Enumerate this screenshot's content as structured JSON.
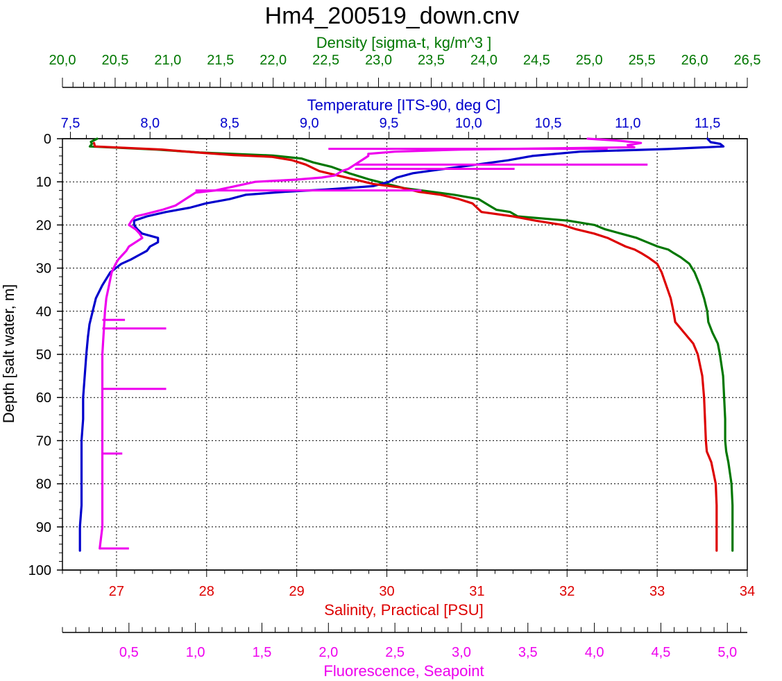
{
  "colors": {
    "density": "#007700",
    "temperature": "#0000cc",
    "salinity": "#dd0000",
    "fluorescence": "#ee00ee",
    "axis": "#000000",
    "grid": "#000000"
  },
  "chart_data": {
    "type": "line",
    "title": "Hm4_200519_down.cnv",
    "grid": true,
    "y_axis": {
      "label": "Depth [salt water, m]",
      "range": [
        0,
        100
      ],
      "reversed": true,
      "ticks": [
        "0",
        "10",
        "20",
        "30",
        "40",
        "50",
        "60",
        "70",
        "80",
        "90",
        "100"
      ],
      "tick_values": [
        0,
        10,
        20,
        30,
        40,
        50,
        60,
        70,
        80,
        90,
        100
      ]
    },
    "axes": {
      "density": {
        "label": "Density [sigma-t, kg/m^3 ]",
        "position": "top",
        "range": [
          20.0,
          26.5
        ],
        "ticks": [
          "20,0",
          "20,5",
          "21,0",
          "21,5",
          "22,0",
          "22,5",
          "23,0",
          "23,5",
          "24,0",
          "24,5",
          "25,0",
          "25,5",
          "26,0",
          "26,5"
        ],
        "tick_values": [
          20.0,
          20.5,
          21.0,
          21.5,
          22.0,
          22.5,
          23.0,
          23.5,
          24.0,
          24.5,
          25.0,
          25.5,
          26.0,
          26.5
        ]
      },
      "temperature": {
        "label": "Temperature [ITS-90, deg C]",
        "position": "top",
        "range": [
          7.45,
          11.75
        ],
        "ticks": [
          "7,5",
          "8,0",
          "8,5",
          "9,0",
          "9,5",
          "10,0",
          "10,5",
          "11,0",
          "11,5"
        ],
        "tick_values": [
          7.5,
          8.0,
          8.5,
          9.0,
          9.5,
          10.0,
          10.5,
          11.0,
          11.5
        ]
      },
      "salinity": {
        "label": "Salinity, Practical [PSU]",
        "position": "bottom",
        "range": [
          26.4,
          34.0
        ],
        "ticks": [
          "27",
          "28",
          "29",
          "30",
          "31",
          "32",
          "33",
          "34"
        ],
        "tick_values": [
          27,
          28,
          29,
          30,
          31,
          32,
          33,
          34
        ]
      },
      "fluorescence": {
        "label": "Fluorescence, Seapoint",
        "position": "bottom",
        "range": [
          0.0,
          5.15
        ],
        "ticks": [
          "0,5",
          "1,0",
          "1,5",
          "2,0",
          "2,5",
          "3,0",
          "3,5",
          "4,0",
          "4,5",
          "5,0"
        ],
        "tick_values": [
          0.5,
          1.0,
          1.5,
          2.0,
          2.5,
          3.0,
          3.5,
          4.0,
          4.5,
          5.0
        ]
      }
    },
    "series": [
      {
        "name": "Density",
        "axis": "density",
        "points": [
          [
            20.33,
            0
          ],
          [
            20.27,
            0.7
          ],
          [
            20.28,
            1.2
          ],
          [
            20.26,
            1.8
          ],
          [
            20.89,
            2.5
          ],
          [
            21.3,
            3.2
          ],
          [
            22.0,
            3.9
          ],
          [
            22.27,
            4.6
          ],
          [
            22.38,
            5.5
          ],
          [
            22.55,
            6.5
          ],
          [
            22.72,
            8.0
          ],
          [
            22.92,
            9.5
          ],
          [
            23.08,
            10.5
          ],
          [
            23.25,
            11.5
          ],
          [
            23.5,
            12.3
          ],
          [
            23.72,
            13.0
          ],
          [
            23.95,
            14.0
          ],
          [
            24.05,
            15.5
          ],
          [
            24.12,
            16.5
          ],
          [
            24.25,
            17.0
          ],
          [
            24.32,
            18.0
          ],
          [
            24.8,
            19.0
          ],
          [
            25.05,
            20.0
          ],
          [
            25.15,
            21.0
          ],
          [
            25.3,
            22.0
          ],
          [
            25.45,
            23.0
          ],
          [
            25.55,
            24.0
          ],
          [
            25.65,
            25.0
          ],
          [
            25.75,
            25.7
          ],
          [
            25.8,
            26.5
          ],
          [
            25.87,
            27.5
          ],
          [
            25.95,
            29.0
          ],
          [
            26.0,
            31.0
          ],
          [
            26.05,
            34.0
          ],
          [
            26.09,
            37.0
          ],
          [
            26.12,
            40.0
          ],
          [
            26.13,
            42.5
          ],
          [
            26.17,
            45.0
          ],
          [
            26.22,
            47.5
          ],
          [
            26.24,
            50.0
          ],
          [
            26.27,
            55.0
          ],
          [
            26.28,
            60.0
          ],
          [
            26.29,
            65.0
          ],
          [
            26.29,
            70.0
          ],
          [
            26.3,
            72.5
          ],
          [
            26.32,
            75.0
          ],
          [
            26.35,
            80.0
          ],
          [
            26.36,
            85.0
          ],
          [
            26.36,
            90.0
          ],
          [
            26.36,
            95.5
          ]
        ]
      },
      {
        "name": "Temperature",
        "axis": "temperature",
        "points": [
          [
            11.5,
            0
          ],
          [
            11.52,
            0.8
          ],
          [
            11.58,
            1.2
          ],
          [
            11.6,
            1.8
          ],
          [
            11.25,
            2.4
          ],
          [
            10.7,
            3.0
          ],
          [
            10.4,
            4.0
          ],
          [
            10.25,
            5.0
          ],
          [
            10.05,
            6.0
          ],
          [
            9.85,
            7.0
          ],
          [
            9.65,
            8.0
          ],
          [
            9.55,
            9.0
          ],
          [
            9.5,
            10.0
          ],
          [
            9.4,
            11.0
          ],
          [
            9.1,
            11.8
          ],
          [
            8.85,
            12.3
          ],
          [
            8.6,
            13.0
          ],
          [
            8.5,
            14.0
          ],
          [
            8.35,
            15.0
          ],
          [
            8.25,
            16.0
          ],
          [
            8.1,
            17.0
          ],
          [
            7.98,
            18.0
          ],
          [
            7.9,
            19.0
          ],
          [
            7.9,
            20.0
          ],
          [
            7.92,
            21.0
          ],
          [
            7.95,
            22.0
          ],
          [
            8.05,
            23.0
          ],
          [
            8.05,
            24.0
          ],
          [
            8.0,
            25.0
          ],
          [
            7.98,
            26.0
          ],
          [
            7.93,
            27.0
          ],
          [
            7.88,
            28.0
          ],
          [
            7.82,
            29.0
          ],
          [
            7.75,
            31.0
          ],
          [
            7.7,
            34.0
          ],
          [
            7.66,
            37.0
          ],
          [
            7.64,
            40.0
          ],
          [
            7.62,
            43.0
          ],
          [
            7.61,
            46.0
          ],
          [
            7.6,
            50.0
          ],
          [
            7.59,
            55.0
          ],
          [
            7.58,
            60.0
          ],
          [
            7.58,
            65.0
          ],
          [
            7.57,
            70.0
          ],
          [
            7.57,
            75.0
          ],
          [
            7.57,
            80.0
          ],
          [
            7.57,
            85.0
          ],
          [
            7.56,
            90.0
          ],
          [
            7.56,
            95.5
          ]
        ]
      },
      {
        "name": "Salinity",
        "axis": "salinity",
        "points": [
          [
            26.75,
            1.0
          ],
          [
            26.76,
            1.8
          ],
          [
            27.5,
            2.5
          ],
          [
            27.9,
            3.2
          ],
          [
            28.3,
            3.8
          ],
          [
            28.72,
            4.2
          ],
          [
            28.95,
            5.0
          ],
          [
            29.1,
            6.0
          ],
          [
            29.25,
            7.5
          ],
          [
            29.45,
            8.5
          ],
          [
            29.65,
            9.5
          ],
          [
            29.85,
            10.5
          ],
          [
            30.15,
            11.3
          ],
          [
            30.35,
            12.3
          ],
          [
            30.6,
            13.0
          ],
          [
            30.8,
            14.0
          ],
          [
            30.95,
            15.0
          ],
          [
            31.0,
            16.0
          ],
          [
            31.05,
            17.0
          ],
          [
            31.4,
            18.0
          ],
          [
            31.65,
            19.0
          ],
          [
            31.95,
            20.0
          ],
          [
            32.1,
            21.0
          ],
          [
            32.3,
            22.0
          ],
          [
            32.45,
            23.0
          ],
          [
            32.55,
            24.0
          ],
          [
            32.65,
            25.0
          ],
          [
            32.75,
            25.7
          ],
          [
            32.82,
            26.5
          ],
          [
            32.9,
            27.5
          ],
          [
            33.0,
            29.0
          ],
          [
            33.05,
            31.0
          ],
          [
            33.1,
            34.0
          ],
          [
            33.15,
            37.0
          ],
          [
            33.18,
            40.0
          ],
          [
            33.2,
            42.5
          ],
          [
            33.3,
            45.0
          ],
          [
            33.4,
            47.5
          ],
          [
            33.45,
            50.0
          ],
          [
            33.5,
            55.0
          ],
          [
            33.52,
            60.0
          ],
          [
            33.53,
            65.0
          ],
          [
            33.54,
            70.0
          ],
          [
            33.55,
            72.5
          ],
          [
            33.6,
            75.0
          ],
          [
            33.65,
            80.0
          ],
          [
            33.66,
            85.0
          ],
          [
            33.66,
            90.0
          ],
          [
            33.66,
            95.5
          ]
        ]
      },
      {
        "name": "Fluorescence",
        "axis": "fluorescence",
        "points": [
          [
            3.95,
            0.0
          ],
          [
            4.2,
            0.5
          ],
          [
            4.35,
            1.0
          ],
          [
            4.25,
            1.5
          ],
          [
            4.3,
            2.0
          ],
          [
            3.0,
            2.5
          ],
          [
            2.5,
            3.0
          ],
          [
            2.3,
            3.5
          ],
          [
            2.3,
            4.0
          ],
          [
            2.25,
            5.0
          ],
          [
            2.2,
            6.0
          ],
          [
            2.15,
            7.0
          ],
          [
            2.1,
            7.5
          ],
          [
            2.05,
            8.5
          ],
          [
            1.95,
            9.0
          ],
          [
            1.75,
            9.5
          ],
          [
            1.45,
            10.0
          ],
          [
            1.3,
            11.0
          ],
          [
            1.15,
            12.0
          ],
          [
            1.0,
            12.5
          ],
          [
            0.95,
            13.5
          ],
          [
            0.9,
            14.5
          ],
          [
            0.85,
            15.5
          ],
          [
            0.75,
            16.5
          ],
          [
            0.62,
            17.5
          ],
          [
            0.55,
            18.0
          ],
          [
            0.52,
            19.0
          ],
          [
            0.5,
            20.0
          ],
          [
            0.55,
            21.0
          ],
          [
            0.58,
            22.0
          ],
          [
            0.6,
            23.0
          ],
          [
            0.55,
            24.0
          ],
          [
            0.5,
            25.0
          ],
          [
            0.48,
            26.0
          ],
          [
            0.45,
            27.0
          ],
          [
            0.42,
            28.0
          ],
          [
            0.4,
            29.0
          ],
          [
            0.37,
            31.0
          ],
          [
            0.35,
            34.0
          ],
          [
            0.33,
            37.0
          ],
          [
            0.32,
            40.0
          ],
          [
            0.31,
            45.0
          ],
          [
            0.3,
            50.0
          ],
          [
            0.3,
            55.0
          ],
          [
            0.3,
            60.0
          ],
          [
            0.3,
            65.0
          ],
          [
            0.3,
            70.0
          ],
          [
            0.3,
            75.0
          ],
          [
            0.3,
            80.0
          ],
          [
            0.3,
            85.0
          ],
          [
            0.3,
            90.0
          ],
          [
            0.28,
            95.0
          ]
        ],
        "spikes": [
          [
            2.35,
            2.0,
            4.1
          ],
          [
            6.0,
            2.2,
            4.4
          ],
          [
            7.0,
            2.2,
            3.4
          ],
          [
            12.0,
            1.0,
            2.7
          ],
          [
            42.0,
            0.3,
            0.47
          ],
          [
            44.0,
            0.3,
            0.78
          ],
          [
            58.0,
            0.3,
            0.78
          ],
          [
            73.0,
            0.3,
            0.45
          ],
          [
            95.0,
            0.28,
            0.5
          ]
        ]
      }
    ]
  }
}
